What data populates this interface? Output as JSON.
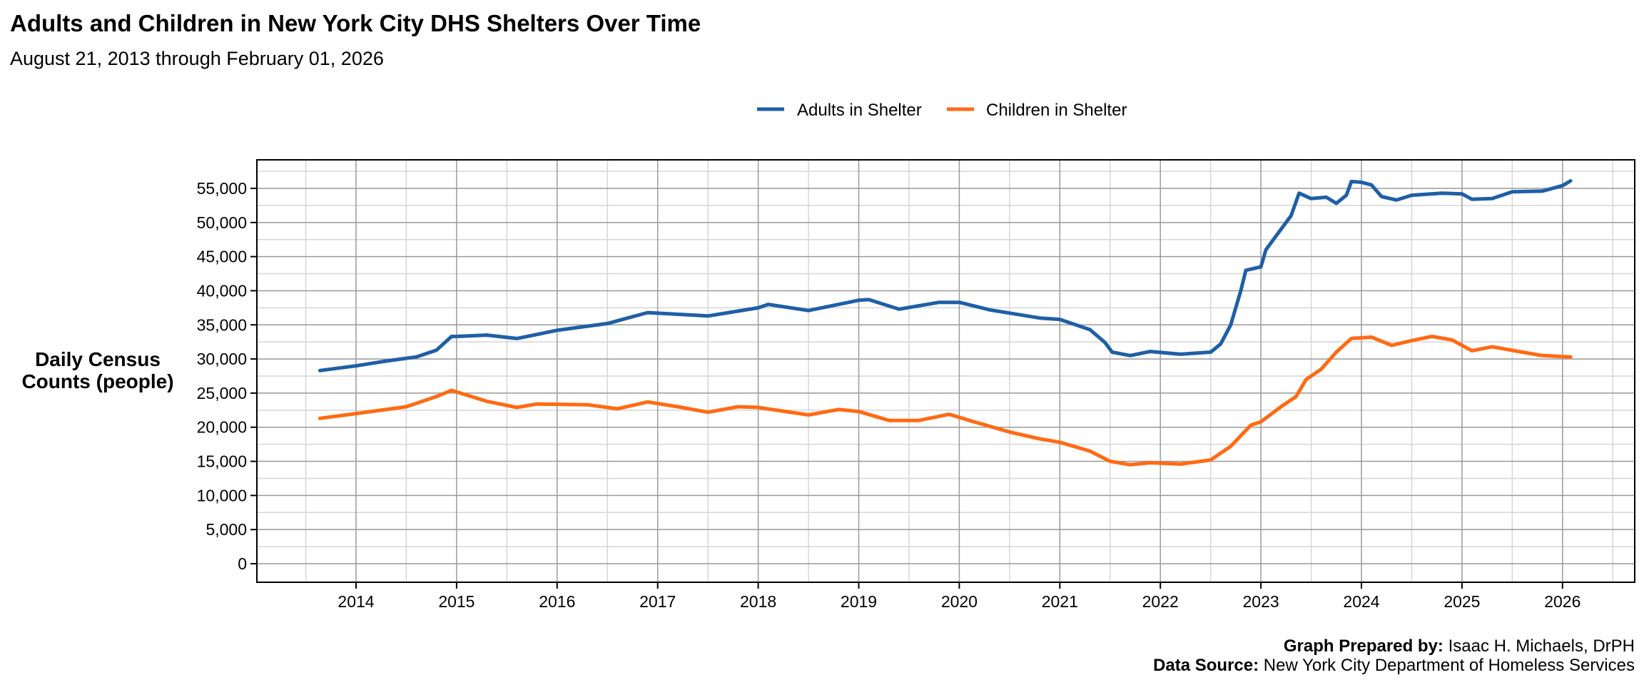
{
  "title": "Adults and Children in New York City DHS Shelters Over Time",
  "subtitle": "August 21, 2013 through February 01, 2026",
  "caption": {
    "prepared_label": "Graph Prepared by:",
    "prepared_value": " Isaac H. Michaels, DrPH",
    "source_label": "Data Source:",
    "source_value": " New York City Department of Homeless Services"
  },
  "chart_data": {
    "type": "line",
    "title": "Adults and Children in New York City DHS Shelters Over Time",
    "ylabel_lines": [
      "Daily Census",
      "Counts (people)"
    ],
    "xlabel": "",
    "xlim": [
      2013.1,
      2026.6
    ],
    "ylim": [
      -2700,
      59000
    ],
    "x_ticks": [
      2014,
      2015,
      2016,
      2017,
      2018,
      2019,
      2020,
      2021,
      2022,
      2023,
      2024,
      2025,
      2026
    ],
    "y_ticks": [
      0,
      5000,
      10000,
      15000,
      20000,
      25000,
      30000,
      35000,
      40000,
      45000,
      50000,
      55000
    ],
    "y_tick_labels": [
      "0",
      "5,000",
      "10,000",
      "15,000",
      "20,000",
      "25,000",
      "30,000",
      "35,000",
      "40,000",
      "45,000",
      "50,000",
      "55,000"
    ],
    "grid": true,
    "legend_position": "top",
    "series": [
      {
        "name": "Adults in Shelter",
        "color": "#1f5fa6",
        "points": [
          [
            2013.64,
            28300
          ],
          [
            2014.0,
            29000
          ],
          [
            2014.3,
            29700
          ],
          [
            2014.6,
            30300
          ],
          [
            2014.8,
            31300
          ],
          [
            2014.95,
            33300
          ],
          [
            2015.0,
            33300
          ],
          [
            2015.3,
            33500
          ],
          [
            2015.6,
            33000
          ],
          [
            2016.0,
            34200
          ],
          [
            2016.5,
            35200
          ],
          [
            2016.9,
            36800
          ],
          [
            2017.5,
            36300
          ],
          [
            2018.0,
            37500
          ],
          [
            2018.1,
            38000
          ],
          [
            2018.5,
            37100
          ],
          [
            2019.0,
            38600
          ],
          [
            2019.1,
            38700
          ],
          [
            2019.4,
            37300
          ],
          [
            2019.8,
            38300
          ],
          [
            2020.0,
            38300
          ],
          [
            2020.3,
            37200
          ],
          [
            2020.8,
            36000
          ],
          [
            2021.0,
            35800
          ],
          [
            2021.3,
            34300
          ],
          [
            2021.45,
            32400
          ],
          [
            2021.52,
            31000
          ],
          [
            2021.7,
            30500
          ],
          [
            2021.9,
            31100
          ],
          [
            2022.2,
            30700
          ],
          [
            2022.5,
            31000
          ],
          [
            2022.6,
            32200
          ],
          [
            2022.7,
            35000
          ],
          [
            2022.8,
            40000
          ],
          [
            2022.85,
            43000
          ],
          [
            2023.0,
            43500
          ],
          [
            2023.05,
            46000
          ],
          [
            2023.15,
            48000
          ],
          [
            2023.3,
            51000
          ],
          [
            2023.38,
            54300
          ],
          [
            2023.5,
            53500
          ],
          [
            2023.65,
            53700
          ],
          [
            2023.75,
            52800
          ],
          [
            2023.85,
            54000
          ],
          [
            2023.9,
            56000
          ],
          [
            2024.0,
            55900
          ],
          [
            2024.1,
            55500
          ],
          [
            2024.2,
            53800
          ],
          [
            2024.35,
            53300
          ],
          [
            2024.5,
            54000
          ],
          [
            2024.8,
            54300
          ],
          [
            2025.0,
            54200
          ],
          [
            2025.1,
            53400
          ],
          [
            2025.3,
            53500
          ],
          [
            2025.5,
            54500
          ],
          [
            2025.8,
            54600
          ],
          [
            2026.0,
            55400
          ],
          [
            2026.08,
            56100
          ]
        ]
      },
      {
        "name": "Children in Shelter",
        "color": "#ff6a13",
        "points": [
          [
            2013.64,
            21300
          ],
          [
            2014.0,
            22000
          ],
          [
            2014.3,
            22600
          ],
          [
            2014.5,
            23000
          ],
          [
            2014.8,
            24500
          ],
          [
            2014.95,
            25400
          ],
          [
            2015.3,
            23800
          ],
          [
            2015.6,
            22900
          ],
          [
            2015.8,
            23400
          ],
          [
            2016.3,
            23300
          ],
          [
            2016.6,
            22700
          ],
          [
            2016.9,
            23700
          ],
          [
            2017.2,
            23000
          ],
          [
            2017.5,
            22200
          ],
          [
            2017.8,
            23000
          ],
          [
            2018.0,
            22900
          ],
          [
            2018.5,
            21800
          ],
          [
            2018.8,
            22600
          ],
          [
            2019.0,
            22300
          ],
          [
            2019.3,
            21000
          ],
          [
            2019.6,
            21000
          ],
          [
            2019.9,
            21900
          ],
          [
            2020.1,
            21000
          ],
          [
            2020.5,
            19300
          ],
          [
            2020.8,
            18300
          ],
          [
            2021.0,
            17800
          ],
          [
            2021.3,
            16500
          ],
          [
            2021.5,
            15000
          ],
          [
            2021.7,
            14500
          ],
          [
            2021.9,
            14800
          ],
          [
            2022.2,
            14600
          ],
          [
            2022.5,
            15200
          ],
          [
            2022.7,
            17200
          ],
          [
            2022.9,
            20300
          ],
          [
            2023.0,
            20800
          ],
          [
            2023.2,
            23000
          ],
          [
            2023.35,
            24500
          ],
          [
            2023.45,
            27000
          ],
          [
            2023.6,
            28500
          ],
          [
            2023.75,
            31000
          ],
          [
            2023.9,
            33000
          ],
          [
            2024.1,
            33200
          ],
          [
            2024.3,
            32000
          ],
          [
            2024.5,
            32700
          ],
          [
            2024.7,
            33300
          ],
          [
            2024.9,
            32800
          ],
          [
            2025.1,
            31200
          ],
          [
            2025.3,
            31800
          ],
          [
            2025.6,
            31000
          ],
          [
            2025.8,
            30500
          ],
          [
            2026.08,
            30300
          ]
        ]
      }
    ]
  }
}
